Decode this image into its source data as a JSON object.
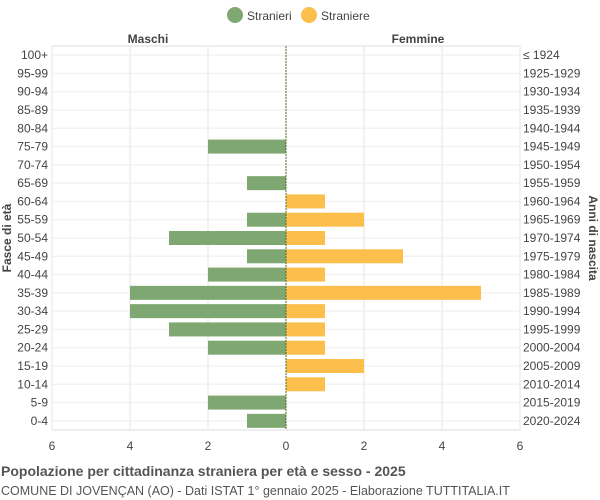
{
  "chart_data": {
    "type": "bar",
    "orientation": "horizontal-pyramid",
    "title": "Popolazione per cittadinanza straniera per età e sesso - 2025",
    "subtitle": "COMUNE DI JOVENÇAN (AO) - Dati ISTAT 1° gennaio 2025 - Elaborazione TUTTITALIA.IT",
    "ylabel_left": "Fasce di età",
    "ylabel_right": "Anni di nascita",
    "left_header": "Maschi",
    "right_header": "Femmine",
    "xlim": [
      -6,
      6
    ],
    "xticks": [
      "6",
      "4",
      "2",
      "0",
      "2",
      "4",
      "6"
    ],
    "grid": true,
    "legend_position": "top",
    "categories": [
      "100+",
      "95-99",
      "90-94",
      "85-89",
      "80-84",
      "75-79",
      "70-74",
      "65-69",
      "60-64",
      "55-59",
      "50-54",
      "45-49",
      "40-44",
      "35-39",
      "30-34",
      "25-29",
      "20-24",
      "15-19",
      "10-14",
      "5-9",
      "0-4"
    ],
    "birth_years": [
      "≤ 1924",
      "1925-1929",
      "1930-1934",
      "1935-1939",
      "1940-1944",
      "1945-1949",
      "1950-1954",
      "1955-1959",
      "1960-1964",
      "1965-1969",
      "1970-1974",
      "1975-1979",
      "1980-1984",
      "1985-1989",
      "1990-1994",
      "1995-1999",
      "2000-2004",
      "2005-2009",
      "2010-2014",
      "2015-2019",
      "2020-2024"
    ],
    "series": [
      {
        "name": "Stranieri",
        "color": "#7fa772",
        "values": [
          0,
          0,
          0,
          0,
          0,
          2,
          0,
          1,
          0,
          1,
          3,
          1,
          2,
          4,
          4,
          3,
          2,
          0,
          0,
          2,
          1
        ]
      },
      {
        "name": "Straniere",
        "color": "#fdbf4b",
        "values": [
          0,
          0,
          0,
          0,
          0,
          0,
          0,
          0,
          1,
          2,
          1,
          3,
          1,
          5,
          1,
          1,
          1,
          2,
          1,
          0,
          0
        ]
      }
    ]
  }
}
